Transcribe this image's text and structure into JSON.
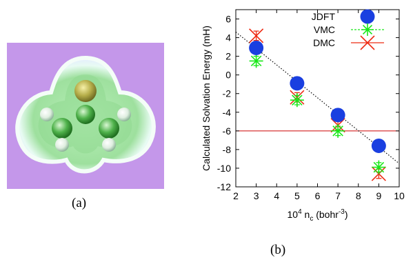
{
  "captions": {
    "a": "(a)",
    "b": "(b)"
  },
  "colors": {
    "background_panel": "#c497ea",
    "jdft": "#1a3fe0",
    "vmc": "#17e817",
    "dmc": "#ee2a12",
    "reference_line": "#cc0000",
    "fit_line": "#000000"
  },
  "chart_data": {
    "type": "scatter",
    "xlabel_prefix": "10",
    "xlabel_exp": "4",
    "xlabel_var": " n",
    "xlabel_sub": "c",
    "xlabel_unit_pre": " (bohr",
    "xlabel_unit_exp": "-3",
    "xlabel_unit_post": ")",
    "ylabel": "Calculated Solvation Energy (mH)",
    "xlim": [
      2,
      10
    ],
    "ylim": [
      -12,
      7
    ],
    "xticks": [
      "2",
      "3",
      "4",
      "5",
      "6",
      "7",
      "8",
      "9",
      "10"
    ],
    "yticks": [
      "-12",
      "-10",
      "-8",
      "-6",
      "-4",
      "-2",
      "0",
      "2",
      "4",
      "6"
    ],
    "legend_position": "top-right",
    "series": [
      {
        "name": "JDFT",
        "marker": "circle",
        "x": [
          3,
          5,
          7,
          9
        ],
        "y": [
          2.9,
          -0.9,
          -4.3,
          -7.6
        ]
      },
      {
        "name": "VMC",
        "marker": "asterisk",
        "errorbar_style": "dashed",
        "x": [
          3,
          5,
          7,
          9
        ],
        "y": [
          1.5,
          -2.7,
          -6.0,
          -9.9
        ],
        "err": [
          0.5,
          0.5,
          0.5,
          0.5
        ]
      },
      {
        "name": "DMC",
        "marker": "cross",
        "errorbar_style": "solid",
        "x": [
          3,
          5,
          7,
          9
        ],
        "y": [
          4.2,
          -2.4,
          -5.4,
          -10.6
        ],
        "err": [
          0.5,
          0.5,
          0.5,
          0.5
        ]
      }
    ],
    "reference_line_y": -6.0,
    "fit_line": {
      "style": "dotted",
      "x": [
        2,
        10
      ],
      "y": [
        4.6,
        -9.5
      ]
    }
  }
}
